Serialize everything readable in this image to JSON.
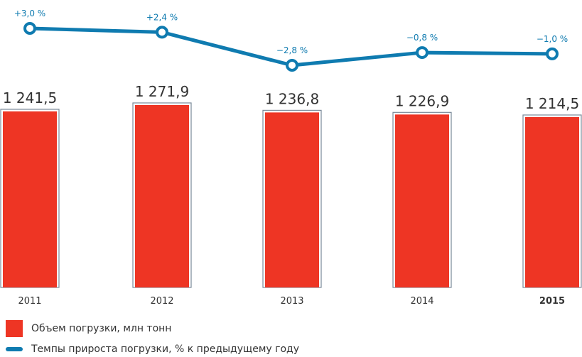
{
  "chart_data": {
    "type": "bar",
    "categories": [
      "2011",
      "2012",
      "2013",
      "2014",
      "2015"
    ],
    "bold_category": "2015",
    "series": [
      {
        "name": "Объем погрузки, млн тонн",
        "type": "bar",
        "values": [
          1241.5,
          1271.9,
          1236.8,
          1226.9,
          1214.5
        ],
        "labels": [
          "1 241,5",
          "1 271,9",
          "1 236,8",
          "1 226,9",
          "1 214,5"
        ],
        "color": "#ee3524"
      },
      {
        "name": "Темпы прироста погрузки, % к предыдущему году",
        "type": "line",
        "values": [
          3.0,
          2.4,
          -2.8,
          -0.8,
          -1.0
        ],
        "labels": [
          "+3,0 %",
          "+2,4 %",
          "−2,8 %",
          "−0,8 %",
          "−1,0 %"
        ],
        "color": "#0f7bb0"
      }
    ],
    "legend_position": "bottom-left",
    "grid": false
  },
  "legend": {
    "bar_label": "Объем погрузки, млн тонн",
    "line_label": "Темпы прироста погрузки, % к предыдущему году"
  }
}
